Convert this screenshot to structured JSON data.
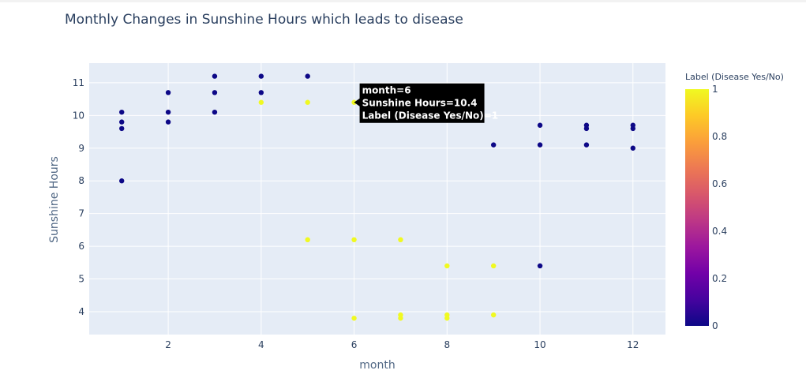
{
  "chart_data": {
    "type": "scatter",
    "title": "Monthly Changes in Sunshine Hours which leads to disease",
    "xlabel": "month",
    "ylabel": "Sunshine Hours",
    "xlim": [
      0.3,
      12.7
    ],
    "ylim": [
      3.3,
      11.6
    ],
    "x_ticks": [
      2,
      4,
      6,
      8,
      10,
      12
    ],
    "y_ticks": [
      4,
      5,
      6,
      7,
      8,
      9,
      10,
      11
    ],
    "grid": true,
    "colorbar": {
      "title": "Label (Disease Yes/No)",
      "range": [
        0,
        1
      ],
      "ticks": [
        "0",
        "0.2",
        "0.4",
        "0.6",
        "0.8",
        "1"
      ],
      "colorscale": [
        "#0d0887",
        "#46039f",
        "#7201a8",
        "#9c179e",
        "#bd3786",
        "#d8576b",
        "#ed7953",
        "#fb9f3a",
        "#fdca26",
        "#f0f921"
      ]
    },
    "points": [
      {
        "x": 1,
        "y": 10.1,
        "label": 0
      },
      {
        "x": 1,
        "y": 9.8,
        "label": 0
      },
      {
        "x": 1,
        "y": 9.6,
        "label": 0
      },
      {
        "x": 1,
        "y": 8.0,
        "label": 0
      },
      {
        "x": 2,
        "y": 10.7,
        "label": 0
      },
      {
        "x": 2,
        "y": 10.1,
        "label": 0
      },
      {
        "x": 2,
        "y": 9.8,
        "label": 0
      },
      {
        "x": 3,
        "y": 11.2,
        "label": 0
      },
      {
        "x": 3,
        "y": 10.7,
        "label": 0
      },
      {
        "x": 3,
        "y": 10.1,
        "label": 0
      },
      {
        "x": 4,
        "y": 11.2,
        "label": 0
      },
      {
        "x": 4,
        "y": 10.7,
        "label": 0
      },
      {
        "x": 4,
        "y": 10.4,
        "label": 1
      },
      {
        "x": 5,
        "y": 11.2,
        "label": 0
      },
      {
        "x": 5,
        "y": 10.4,
        "label": 1
      },
      {
        "x": 5,
        "y": 6.2,
        "label": 1
      },
      {
        "x": 6,
        "y": 10.4,
        "label": 1
      },
      {
        "x": 6,
        "y": 6.2,
        "label": 1
      },
      {
        "x": 6,
        "y": 3.8,
        "label": 1
      },
      {
        "x": 7,
        "y": 6.2,
        "label": 1
      },
      {
        "x": 7,
        "y": 3.9,
        "label": 1
      },
      {
        "x": 7,
        "y": 3.8,
        "label": 1
      },
      {
        "x": 8,
        "y": 5.4,
        "label": 1
      },
      {
        "x": 8,
        "y": 3.9,
        "label": 1
      },
      {
        "x": 8,
        "y": 3.8,
        "label": 1
      },
      {
        "x": 9,
        "y": 9.1,
        "label": 0
      },
      {
        "x": 9,
        "y": 5.4,
        "label": 1
      },
      {
        "x": 9,
        "y": 3.9,
        "label": 1
      },
      {
        "x": 10,
        "y": 9.7,
        "label": 0
      },
      {
        "x": 10,
        "y": 9.1,
        "label": 0
      },
      {
        "x": 10,
        "y": 5.4,
        "label": 0
      },
      {
        "x": 11,
        "y": 9.7,
        "label": 0
      },
      {
        "x": 11,
        "y": 9.6,
        "label": 0
      },
      {
        "x": 11,
        "y": 9.1,
        "label": 0
      },
      {
        "x": 12,
        "y": 9.7,
        "label": 0
      },
      {
        "x": 12,
        "y": 9.6,
        "label": 0
      },
      {
        "x": 12,
        "y": 9.0,
        "label": 0
      }
    ],
    "tooltip": {
      "x": 6,
      "y": 10.4,
      "lines": [
        "month=6",
        "Sunshine Hours=10.4",
        "Label (Disease Yes/No)=1"
      ]
    },
    "colors": {
      "plot_bg": "#e5ecf6",
      "grid": "#ffffff",
      "label_0": "#0d0887",
      "label_1": "#f0f921",
      "tooltip_bg": "#000000"
    }
  }
}
